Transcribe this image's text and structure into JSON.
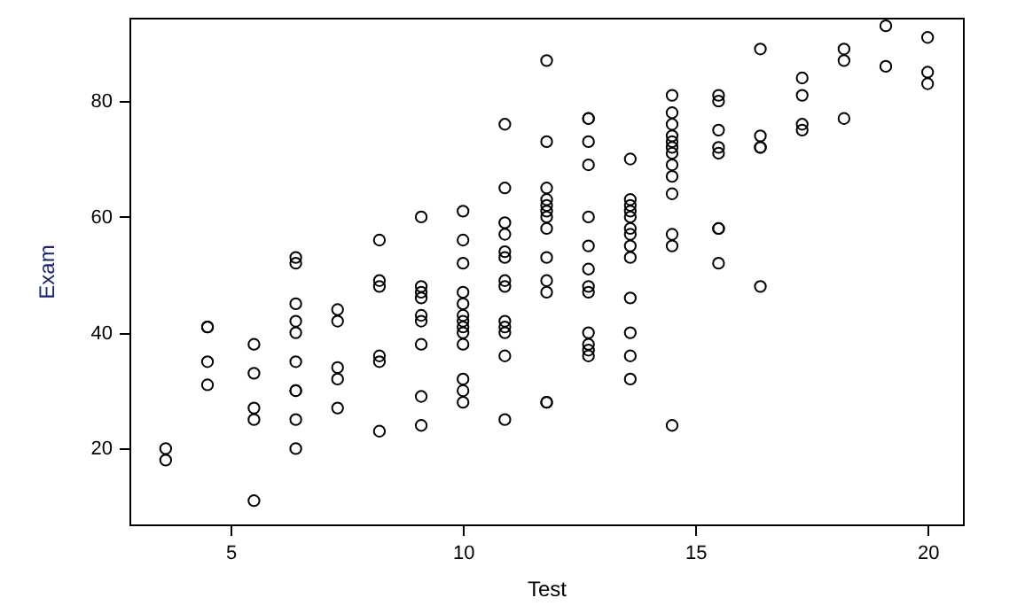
{
  "chart_data": {
    "type": "scatter",
    "xlabel": "Test",
    "ylabel": "Exam",
    "xlim": [
      2.82,
      20.76
    ],
    "ylim": [
      6.9,
      94.4
    ],
    "xticks": [
      5,
      10,
      15,
      20
    ],
    "yticks": [
      20,
      40,
      60,
      80
    ],
    "grid": false,
    "marker": "circle",
    "series": [
      {
        "color": "#000000",
        "x": [
          3.6,
          3.6,
          4.5,
          4.5,
          4.5,
          4.5,
          5.5,
          5.5,
          5.5,
          5.5,
          5.5,
          6.4,
          6.4,
          6.4,
          6.4,
          6.4,
          6.4,
          6.4,
          6.4,
          6.4,
          6.4,
          7.3,
          7.3,
          7.3,
          7.3,
          7.3,
          8.2,
          8.2,
          8.2,
          8.2,
          8.2,
          8.2,
          9.1,
          9.1,
          9.1,
          9.1,
          9.1,
          9.1,
          9.1,
          9.1,
          9.1,
          10,
          10,
          10,
          10,
          10,
          10,
          10,
          10,
          10,
          10,
          10,
          10,
          10,
          10.9,
          10.9,
          10.9,
          10.9,
          10.9,
          10.9,
          10.9,
          10.9,
          10.9,
          10.9,
          10.9,
          10.9,
          10.9,
          11.8,
          11.8,
          11.8,
          11.8,
          11.8,
          11.8,
          11.8,
          11.8,
          11.8,
          11.8,
          11.8,
          11.8,
          11.8,
          12.7,
          12.7,
          12.7,
          12.7,
          12.7,
          12.7,
          12.7,
          12.7,
          12.7,
          12.7,
          12.7,
          12.7,
          12.7,
          13.6,
          13.6,
          13.6,
          13.6,
          13.6,
          13.6,
          13.6,
          13.6,
          13.6,
          13.6,
          13.6,
          13.6,
          13.6,
          14.5,
          14.5,
          14.5,
          14.5,
          14.5,
          14.5,
          14.5,
          14.5,
          14.5,
          14.5,
          14.5,
          14.5,
          14.5,
          15.5,
          15.5,
          15.5,
          15.5,
          15.5,
          15.5,
          15.5,
          15.5,
          16.4,
          16.4,
          16.4,
          16.4,
          16.4,
          17.3,
          17.3,
          17.3,
          17.3,
          18.2,
          18.2,
          18.2,
          19.1,
          19.1,
          20,
          20,
          20
        ],
        "values": [
          20,
          18,
          41,
          41,
          35,
          31,
          38,
          33,
          27,
          25,
          11,
          53,
          52,
          45,
          42,
          40,
          35,
          30,
          30,
          25,
          20,
          44,
          42,
          34,
          32,
          27,
          56,
          49,
          48,
          36,
          35,
          23,
          60,
          48,
          47,
          46,
          43,
          42,
          38,
          29,
          24,
          61,
          56,
          52,
          47,
          45,
          43,
          42,
          41,
          40,
          38,
          32,
          30,
          28,
          76,
          65,
          59,
          57,
          54,
          53,
          49,
          48,
          42,
          41,
          40,
          36,
          25,
          87,
          73,
          65,
          63,
          62,
          61,
          60,
          58,
          53,
          49,
          47,
          28,
          28,
          77,
          77,
          73,
          69,
          60,
          55,
          51,
          48,
          47,
          40,
          38,
          37,
          36,
          70,
          63,
          62,
          61,
          60,
          58,
          57,
          55,
          53,
          46,
          40,
          36,
          32,
          81,
          78,
          76,
          74,
          73,
          72,
          71,
          69,
          67,
          64,
          57,
          55,
          24,
          81,
          80,
          75,
          72,
          71,
          58,
          58,
          52,
          89,
          74,
          72,
          72,
          48,
          84,
          81,
          76,
          75,
          89,
          87,
          77,
          93,
          86,
          91,
          85,
          83
        ]
      }
    ]
  }
}
